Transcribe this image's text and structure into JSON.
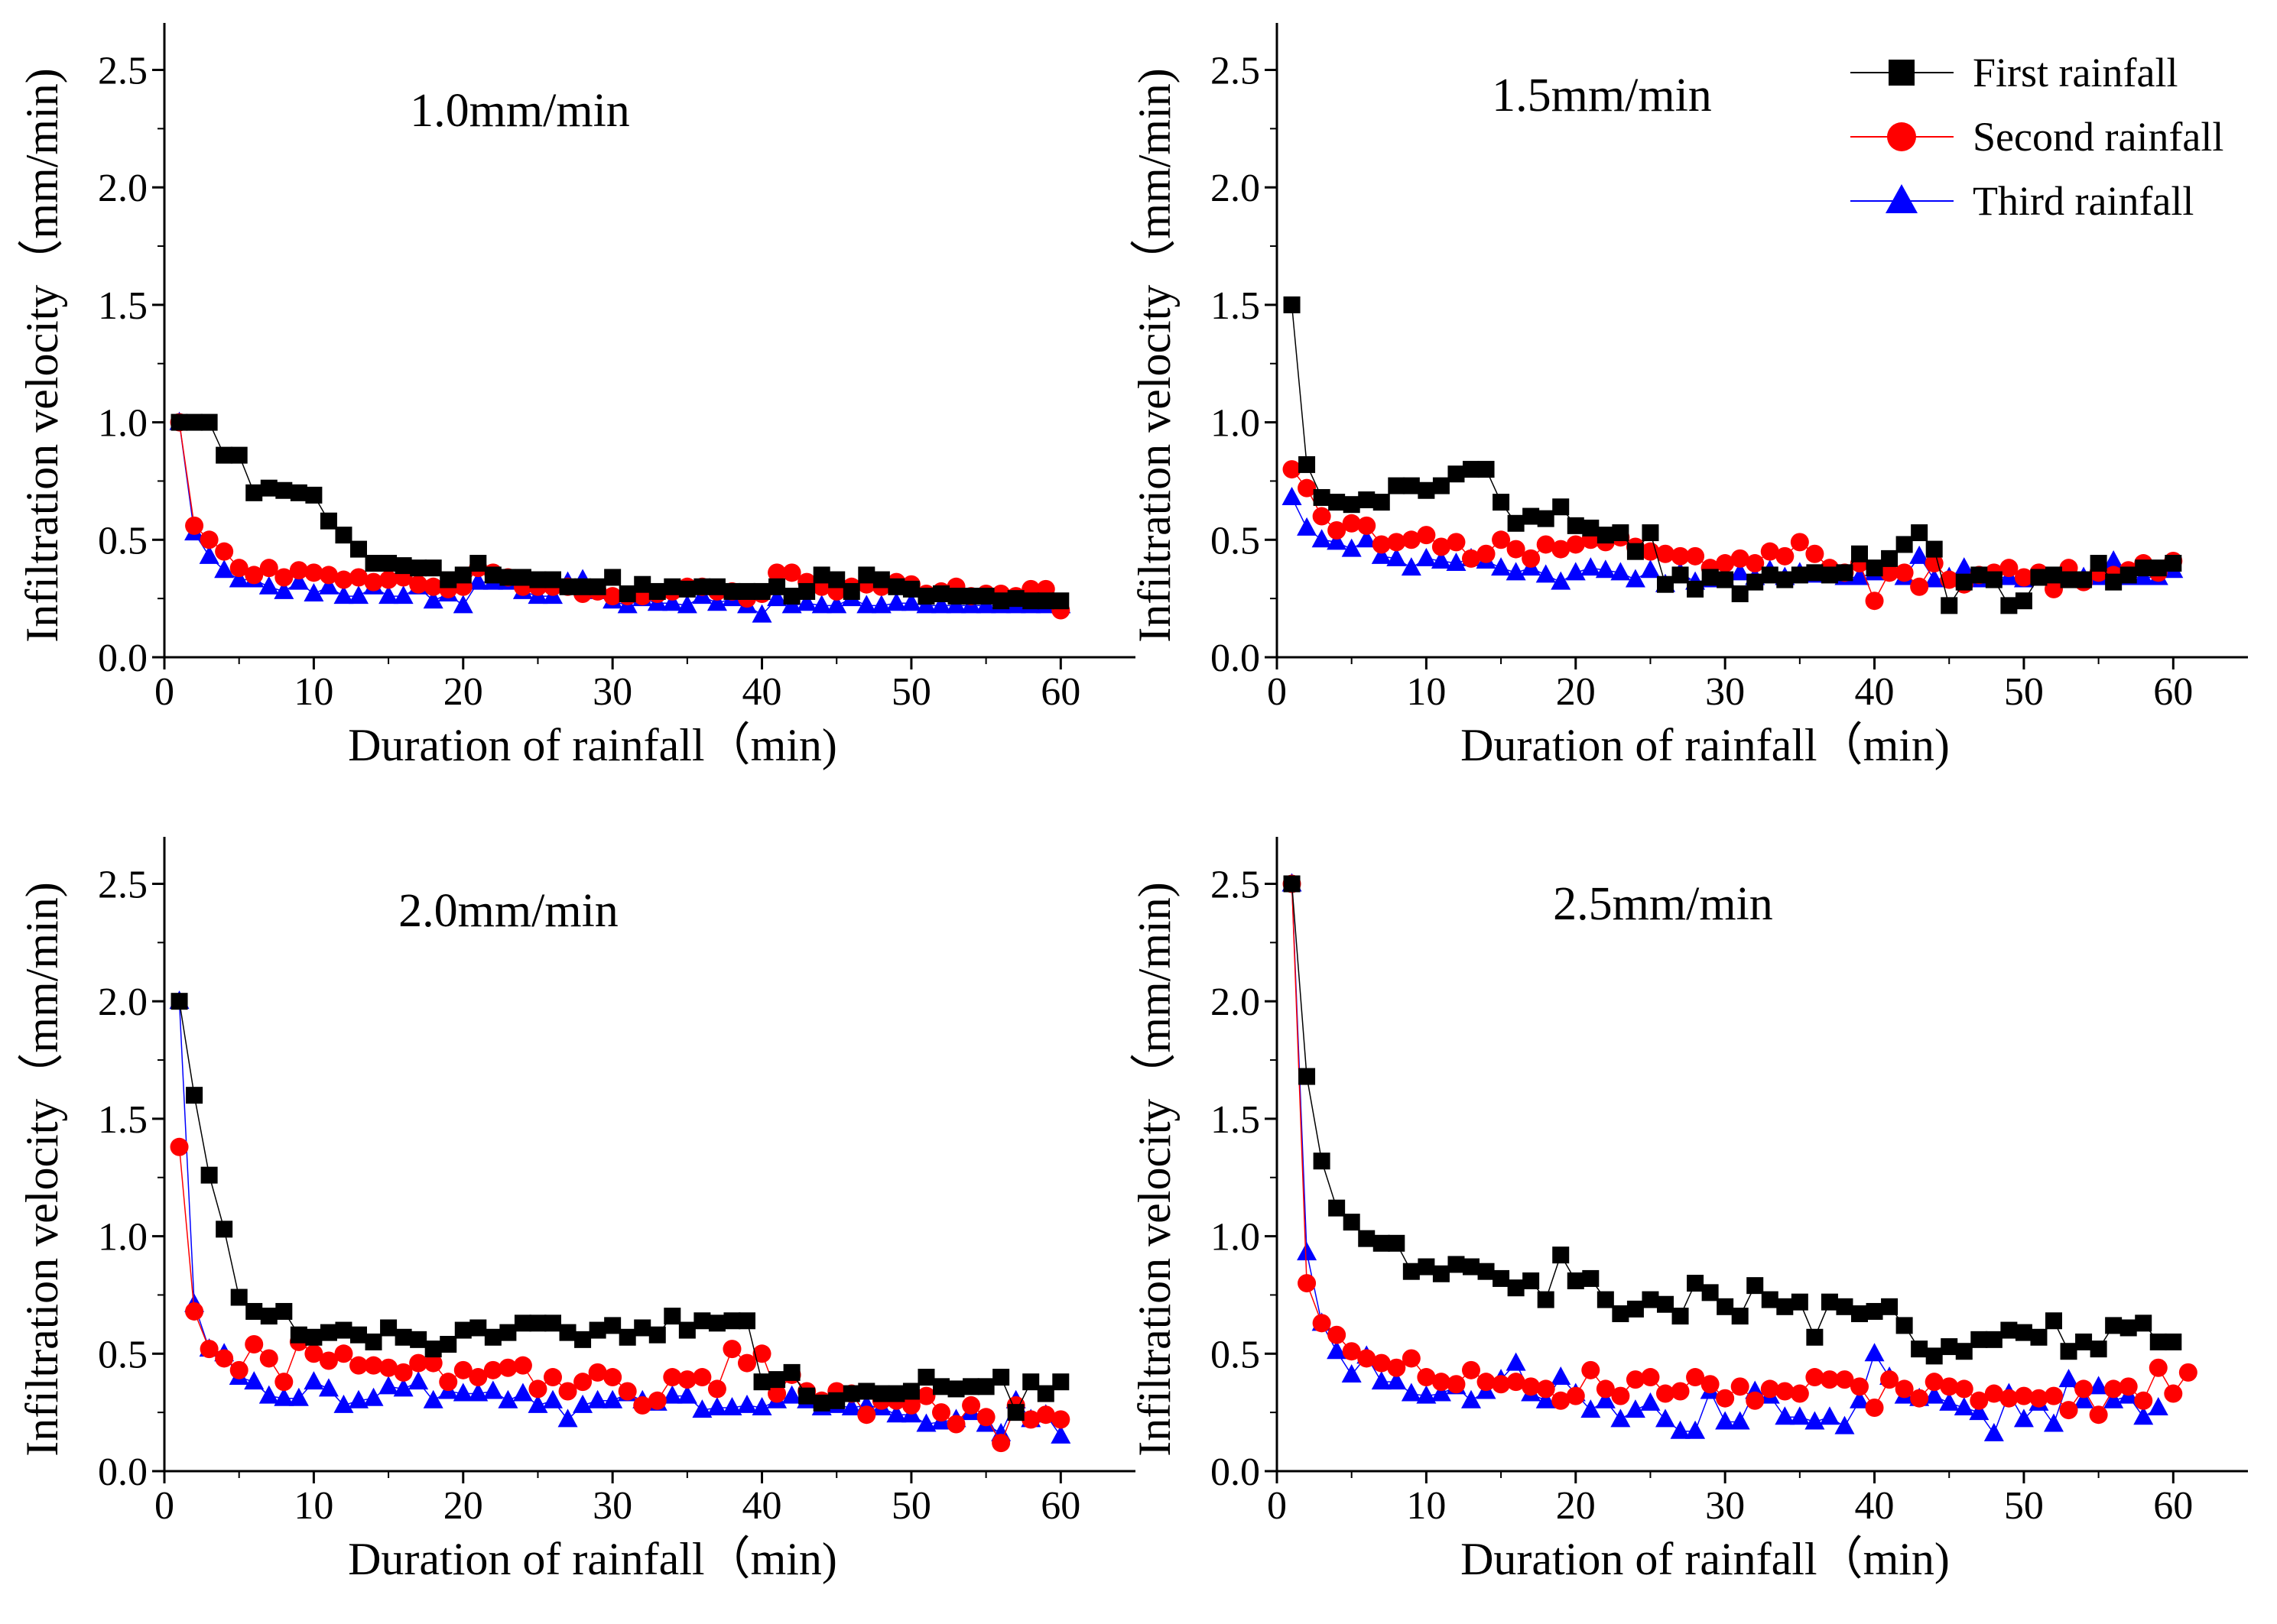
{
  "figure": {
    "legend": [
      {
        "label": "First rainfall",
        "color": "#000000",
        "marker": "square"
      },
      {
        "label": "Second rainfall",
        "color": "#ff0000",
        "marker": "circle"
      },
      {
        "label": "Third rainfall",
        "color": "#0000ff",
        "marker": "triangle"
      }
    ]
  },
  "chart_data": [
    {
      "type": "scatter",
      "title": "1.0mm/min",
      "xlabel": "Duration of rainfall（min)",
      "ylabel": "Infiltration velocity（mm/min)",
      "xlim": [
        0,
        65
      ],
      "ylim": [
        0,
        2.7
      ],
      "xticks": [
        0,
        10,
        20,
        30,
        40,
        50,
        60
      ],
      "yticks": [
        0.0,
        0.5,
        1.0,
        1.5,
        2.0,
        2.5
      ],
      "series": [
        {
          "name": "First rainfall",
          "color": "#000000",
          "marker": "square",
          "values": [
            1.0,
            1.0,
            1.0,
            0.86,
            0.86,
            0.7,
            0.72,
            0.71,
            0.7,
            0.69,
            0.58,
            0.52,
            0.46,
            0.4,
            0.4,
            0.39,
            0.38,
            0.38,
            0.33,
            0.35,
            0.4,
            0.35,
            0.34,
            0.34,
            0.33,
            0.33,
            0.3,
            0.3,
            0.3,
            0.34,
            0.27,
            0.31,
            0.28,
            0.3,
            0.29,
            0.3,
            0.3,
            0.28,
            0.28,
            0.28,
            0.3,
            0.26,
            0.28,
            0.35,
            0.33,
            0.28,
            0.35,
            0.33,
            0.3,
            0.29,
            0.26,
            0.27,
            0.26,
            0.26,
            0.26,
            0.24,
            0.25,
            0.24,
            0.24,
            0.24
          ]
        },
        {
          "name": "Second rainfall",
          "color": "#ff0000",
          "marker": "circle",
          "values": [
            1.0,
            0.56,
            0.5,
            0.45,
            0.38,
            0.35,
            0.38,
            0.34,
            0.37,
            0.36,
            0.35,
            0.33,
            0.34,
            0.32,
            0.33,
            0.34,
            0.31,
            0.3,
            0.29,
            0.3,
            0.38,
            0.36,
            0.34,
            0.3,
            0.3,
            0.3,
            0.3,
            0.27,
            0.28,
            0.26,
            0.26,
            0.26,
            0.27,
            0.28,
            0.3,
            0.3,
            0.28,
            0.28,
            0.25,
            0.27,
            0.36,
            0.36,
            0.32,
            0.3,
            0.28,
            0.3,
            0.31,
            0.3,
            0.32,
            0.31,
            0.27,
            0.28,
            0.3,
            0.26,
            0.27,
            0.27,
            0.26,
            0.29,
            0.29,
            0.2
          ]
        },
        {
          "name": "Third rainfall",
          "color": "#0000ff",
          "marker": "triangle",
          "values": [
            1.0,
            0.53,
            0.43,
            0.37,
            0.33,
            0.33,
            0.3,
            0.28,
            0.32,
            0.27,
            0.3,
            0.26,
            0.26,
            0.3,
            0.26,
            0.26,
            0.3,
            0.24,
            0.27,
            0.22,
            0.32,
            0.32,
            0.32,
            0.28,
            0.26,
            0.26,
            0.32,
            0.33,
            0.28,
            0.24,
            0.22,
            0.25,
            0.23,
            0.23,
            0.22,
            0.26,
            0.23,
            0.25,
            0.22,
            0.18,
            0.25,
            0.22,
            0.23,
            0.22,
            0.22,
            0.25,
            0.22,
            0.22,
            0.23,
            0.23,
            0.22,
            0.22,
            0.22,
            0.22,
            0.22,
            0.22,
            0.22,
            0.22,
            0.22,
            0.22
          ]
        }
      ]
    },
    {
      "type": "scatter",
      "title": "1.5mm/min",
      "xlabel": "Duration of rainfall（min)",
      "ylabel": "Infiltration velocity（mm/min)",
      "xlim": [
        0,
        65
      ],
      "ylim": [
        0,
        2.7
      ],
      "xticks": [
        0,
        10,
        20,
        30,
        40,
        50,
        60
      ],
      "yticks": [
        0.0,
        0.5,
        1.0,
        1.5,
        2.0,
        2.5
      ],
      "series": [
        {
          "name": "First rainfall",
          "color": "#000000",
          "marker": "square",
          "values": [
            1.5,
            0.82,
            0.68,
            0.66,
            0.65,
            0.67,
            0.66,
            0.73,
            0.73,
            0.71,
            0.73,
            0.78,
            0.8,
            0.8,
            0.66,
            0.57,
            0.6,
            0.59,
            0.64,
            0.56,
            0.55,
            0.52,
            0.53,
            0.45,
            0.53,
            0.31,
            0.35,
            0.29,
            0.34,
            0.33,
            0.27,
            0.32,
            0.35,
            0.33,
            0.35,
            0.36,
            0.35,
            0.36,
            0.44,
            0.38,
            0.42,
            0.48,
            0.53,
            0.46,
            0.22,
            0.32,
            0.35,
            0.33,
            0.22,
            0.24,
            0.34,
            0.35,
            0.33,
            0.33,
            0.4,
            0.32,
            0.35,
            0.38,
            0.38,
            0.4
          ]
        },
        {
          "name": "Second rainfall",
          "color": "#ff0000",
          "marker": "circle",
          "values": [
            0.8,
            0.72,
            0.6,
            0.54,
            0.57,
            0.56,
            0.48,
            0.49,
            0.5,
            0.52,
            0.47,
            0.49,
            0.42,
            0.44,
            0.5,
            0.46,
            0.42,
            0.48,
            0.46,
            0.48,
            0.5,
            0.49,
            0.51,
            0.47,
            0.45,
            0.44,
            0.43,
            0.43,
            0.38,
            0.4,
            0.42,
            0.4,
            0.45,
            0.43,
            0.49,
            0.44,
            0.38,
            0.36,
            0.4,
            0.24,
            0.36,
            0.36,
            0.3,
            0.4,
            0.33,
            0.31,
            0.35,
            0.36,
            0.38,
            0.34,
            0.36,
            0.29,
            0.38,
            0.32,
            0.36,
            0.35,
            0.37,
            0.4,
            0.36,
            0.41
          ]
        },
        {
          "name": "Third rainfall",
          "color": "#0000ff",
          "marker": "triangle",
          "values": [
            0.68,
            0.55,
            0.5,
            0.49,
            0.46,
            0.5,
            0.43,
            0.42,
            0.38,
            0.42,
            0.41,
            0.4,
            0.42,
            0.41,
            0.38,
            0.36,
            0.38,
            0.35,
            0.32,
            0.36,
            0.38,
            0.37,
            0.36,
            0.33,
            0.37,
            0.31,
            0.36,
            0.32,
            0.33,
            0.33,
            0.36,
            0.34,
            0.37,
            0.34,
            0.36,
            0.35,
            0.35,
            0.34,
            0.34,
            0.36,
            0.37,
            0.34,
            0.43,
            0.33,
            0.34,
            0.38,
            0.33,
            0.34,
            0.34,
            0.33,
            0.34,
            0.34,
            0.34,
            0.34,
            0.34,
            0.41,
            0.34,
            0.34,
            0.34,
            0.37
          ]
        }
      ]
    },
    {
      "type": "scatter",
      "title": "2.0mm/min",
      "xlabel": "Duration of rainfall（min)",
      "ylabel": "Infiltration velocity（mm/min)",
      "xlim": [
        0,
        65
      ],
      "ylim": [
        0,
        2.7
      ],
      "xticks": [
        0,
        10,
        20,
        30,
        40,
        50,
        60
      ],
      "yticks": [
        0.0,
        0.5,
        1.0,
        1.5,
        2.0,
        2.5
      ],
      "series": [
        {
          "name": "First rainfall",
          "color": "#000000",
          "marker": "square",
          "values": [
            2.0,
            1.6,
            1.26,
            1.03,
            0.74,
            0.68,
            0.66,
            0.68,
            0.58,
            0.57,
            0.59,
            0.6,
            0.58,
            0.55,
            0.61,
            0.57,
            0.56,
            0.52,
            0.54,
            0.6,
            0.61,
            0.57,
            0.59,
            0.63,
            0.63,
            0.63,
            0.59,
            0.56,
            0.6,
            0.62,
            0.57,
            0.61,
            0.58,
            0.66,
            0.6,
            0.64,
            0.63,
            0.64,
            0.64,
            0.38,
            0.39,
            0.42,
            0.32,
            0.29,
            0.3,
            0.33,
            0.34,
            0.33,
            0.33,
            0.34,
            0.4,
            0.36,
            0.35,
            0.36,
            0.36,
            0.4,
            0.25,
            0.38,
            0.33,
            0.38
          ]
        },
        {
          "name": "Second rainfall",
          "color": "#ff0000",
          "marker": "circle",
          "values": [
            1.38,
            0.68,
            0.52,
            0.48,
            0.43,
            0.54,
            0.48,
            0.38,
            0.55,
            0.5,
            0.47,
            0.5,
            0.45,
            0.45,
            0.44,
            0.42,
            0.46,
            0.46,
            0.38,
            0.43,
            0.4,
            0.43,
            0.44,
            0.45,
            0.35,
            0.4,
            0.34,
            0.38,
            0.42,
            0.4,
            0.34,
            0.28,
            0.3,
            0.4,
            0.39,
            0.4,
            0.35,
            0.52,
            0.46,
            0.5,
            0.33,
            0.41,
            0.34,
            0.3,
            0.34,
            0.33,
            0.24,
            0.3,
            0.3,
            0.28,
            0.32,
            0.25,
            0.2,
            0.28,
            0.23,
            0.12,
            0.28,
            0.22,
            0.24,
            0.22
          ]
        },
        {
          "name": "Third rainfall",
          "color": "#0000ff",
          "marker": "triangle",
          "values": [
            2.0,
            0.71,
            0.52,
            0.5,
            0.4,
            0.38,
            0.32,
            0.31,
            0.31,
            0.38,
            0.35,
            0.28,
            0.3,
            0.31,
            0.36,
            0.35,
            0.38,
            0.3,
            0.34,
            0.33,
            0.33,
            0.34,
            0.3,
            0.33,
            0.28,
            0.3,
            0.22,
            0.28,
            0.3,
            0.3,
            0.33,
            0.3,
            0.29,
            0.32,
            0.32,
            0.26,
            0.27,
            0.27,
            0.28,
            0.27,
            0.3,
            0.32,
            0.3,
            0.27,
            0.28,
            0.27,
            0.28,
            0.27,
            0.24,
            0.24,
            0.2,
            0.21,
            0.22,
            0.25,
            0.2,
            0.16,
            0.3,
            0.22,
            0.24,
            0.15
          ]
        }
      ]
    },
    {
      "type": "scatter",
      "title": "2.5mm/min",
      "xlabel": "Duration of rainfall（min)",
      "ylabel": "Infiltration velocity（mm/min)",
      "xlim": [
        0,
        65
      ],
      "ylim": [
        0,
        2.7
      ],
      "xticks": [
        0,
        10,
        20,
        30,
        40,
        50,
        60
      ],
      "yticks": [
        0.0,
        0.5,
        1.0,
        1.5,
        2.0,
        2.5
      ],
      "series": [
        {
          "name": "First rainfall",
          "color": "#000000",
          "marker": "square",
          "values": [
            2.5,
            1.68,
            1.32,
            1.12,
            1.06,
            0.99,
            0.97,
            0.97,
            0.85,
            0.87,
            0.84,
            0.88,
            0.87,
            0.85,
            0.82,
            0.78,
            0.81,
            0.73,
            0.92,
            0.81,
            0.82,
            0.73,
            0.67,
            0.69,
            0.73,
            0.71,
            0.66,
            0.8,
            0.76,
            0.7,
            0.66,
            0.79,
            0.73,
            0.7,
            0.72,
            0.57,
            0.72,
            0.7,
            0.67,
            0.68,
            0.7,
            0.62,
            0.52,
            0.49,
            0.53,
            0.51,
            0.56,
            0.56,
            0.6,
            0.59,
            0.57,
            0.64,
            0.51,
            0.55,
            0.52,
            0.62,
            0.61,
            0.63,
            0.55,
            0.55
          ]
        },
        {
          "name": "Second rainfall",
          "color": "#ff0000",
          "marker": "circle",
          "values": [
            2.5,
            0.8,
            0.63,
            0.58,
            0.51,
            0.48,
            0.46,
            0.44,
            0.48,
            0.4,
            0.38,
            0.37,
            0.43,
            0.38,
            0.37,
            0.38,
            0.36,
            0.35,
            0.3,
            0.32,
            0.43,
            0.35,
            0.32,
            0.39,
            0.4,
            0.33,
            0.34,
            0.4,
            0.37,
            0.31,
            0.36,
            0.3,
            0.35,
            0.34,
            0.33,
            0.4,
            0.39,
            0.39,
            0.36,
            0.27,
            0.39,
            0.35,
            0.31,
            0.38,
            0.36,
            0.35,
            0.3,
            0.33,
            0.31,
            0.32,
            0.31,
            0.32,
            0.26,
            0.35,
            0.24,
            0.35,
            0.36,
            0.3,
            0.44,
            0.33,
            0.42
          ]
        },
        {
          "name": "Third rainfall",
          "color": "#0000ff",
          "marker": "triangle",
          "values": [
            2.5,
            0.93,
            0.63,
            0.51,
            0.41,
            0.49,
            0.38,
            0.38,
            0.33,
            0.32,
            0.33,
            0.36,
            0.3,
            0.34,
            0.39,
            0.46,
            0.33,
            0.3,
            0.4,
            0.33,
            0.26,
            0.3,
            0.22,
            0.26,
            0.29,
            0.22,
            0.17,
            0.17,
            0.34,
            0.21,
            0.21,
            0.34,
            0.32,
            0.23,
            0.23,
            0.21,
            0.23,
            0.19,
            0.3,
            0.5,
            0.4,
            0.32,
            0.31,
            0.32,
            0.29,
            0.27,
            0.25,
            0.16,
            0.33,
            0.22,
            0.29,
            0.2,
            0.39,
            0.3,
            0.36,
            0.3,
            0.32,
            0.23,
            0.27
          ]
        }
      ]
    }
  ]
}
